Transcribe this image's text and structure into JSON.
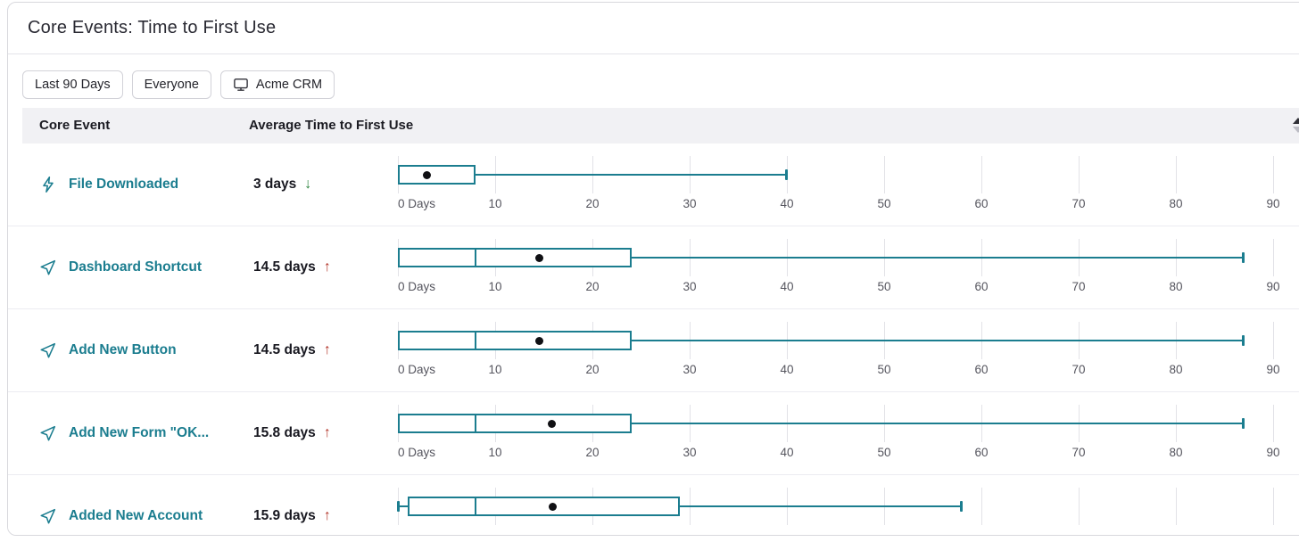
{
  "page": {
    "title": "Core Events: Time to First Use"
  },
  "filters": {
    "time_range": "Last 90 Days",
    "segment": "Everyone",
    "app": "Acme CRM",
    "app_icon": "monitor-icon"
  },
  "table": {
    "columns": [
      {
        "label": "Core Event"
      },
      {
        "label": "Average Time to First Use"
      }
    ],
    "sort_icon": "sort-arrows-icon",
    "axis": {
      "unit": "days",
      "tick_values": [
        0,
        10,
        20,
        30,
        40,
        50,
        60,
        70,
        80,
        90
      ],
      "tick_labels": [
        "0 Days",
        "10",
        "20",
        "30",
        "40",
        "50",
        "60",
        "70",
        "80",
        "90"
      ]
    },
    "rows": [
      {
        "icon": "lightning-icon",
        "name": "File Downloaded",
        "average": "3 days",
        "trend": "down",
        "trend_glyph": "↓",
        "boxplot": {
          "min": 0,
          "q1": 0,
          "median": null,
          "q3": 8,
          "max": 40,
          "mean": 3
        }
      },
      {
        "icon": "cursor-icon",
        "name": "Dashboard Shortcut",
        "average": "14.5 days",
        "trend": "up",
        "trend_glyph": "↑",
        "boxplot": {
          "min": 0,
          "q1": 0,
          "median": 8,
          "q3": 24,
          "max": 87,
          "mean": 14.5
        }
      },
      {
        "icon": "cursor-icon",
        "name": "Add New Button",
        "average": "14.5 days",
        "trend": "up",
        "trend_glyph": "↑",
        "boxplot": {
          "min": 0,
          "q1": 0,
          "median": 8,
          "q3": 24,
          "max": 87,
          "mean": 14.5
        }
      },
      {
        "icon": "cursor-icon",
        "name": "Add New Form \"OK...",
        "average": "15.8 days",
        "trend": "up",
        "trend_glyph": "↑",
        "boxplot": {
          "min": 0,
          "q1": 0,
          "median": 8,
          "q3": 24,
          "max": 87,
          "mean": 15.8
        }
      },
      {
        "icon": "cursor-icon",
        "name": "Added New Account",
        "average": "15.9 days",
        "trend": "up",
        "trend_glyph": "↑",
        "boxplot": {
          "min": 0,
          "q1": 1,
          "median": 8,
          "q3": 29,
          "max": 58,
          "mean": 15.9
        }
      }
    ]
  },
  "chart_data": {
    "type": "boxplot",
    "title": "Core Events: Time to First Use",
    "x_unit": "days",
    "x_ticks": [
      0,
      10,
      20,
      30,
      40,
      50,
      60,
      70,
      80,
      90
    ],
    "series": [
      {
        "name": "File Downloaded",
        "min": 0,
        "q1": 0,
        "median": null,
        "q3": 8,
        "max": 40,
        "mean": 3
      },
      {
        "name": "Dashboard Shortcut",
        "min": 0,
        "q1": 0,
        "median": 8,
        "q3": 24,
        "max": 87,
        "mean": 14.5
      },
      {
        "name": "Add New Button",
        "min": 0,
        "q1": 0,
        "median": 8,
        "q3": 24,
        "max": 87,
        "mean": 14.5
      },
      {
        "name": "Add New Form \"OK...",
        "min": 0,
        "q1": 0,
        "median": 8,
        "q3": 24,
        "max": 87,
        "mean": 15.8
      },
      {
        "name": "Added New Account",
        "min": 0,
        "q1": 1,
        "median": 8,
        "q3": 29,
        "max": 58,
        "mean": 15.9
      }
    ]
  },
  "colors": {
    "teal": "#1B7D8F",
    "trend_up_red": "#B3362B",
    "trend_down_green": "#2E8540",
    "header_bg": "#F1F1F4",
    "gridline": "#E2E2E7",
    "mean_dot": "#101014"
  }
}
